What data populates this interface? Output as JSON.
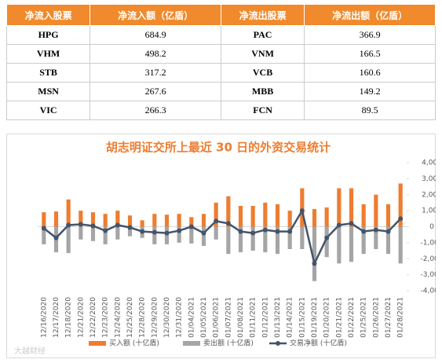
{
  "table": {
    "header": [
      "净流入股票",
      "净流入额（亿盾）",
      "净流出股票",
      "净流出额（亿盾）"
    ],
    "rows": [
      [
        "HPG",
        "684.9",
        "PAC",
        "366.9"
      ],
      [
        "VHM",
        "498.2",
        "VNM",
        "166.5"
      ],
      [
        "STB",
        "317.2",
        "VCB",
        "160.6"
      ],
      [
        "MSN",
        "267.6",
        "MBB",
        "149.2"
      ],
      [
        "VIC",
        "266.3",
        "FCN",
        "89.5"
      ]
    ]
  },
  "chart_data": {
    "type": "bar",
    "title": "胡志明证交所上最近 30 日的外资交易统计",
    "categories": [
      "12/16/2020",
      "12/17/2020",
      "12/18/2020",
      "12/21/2020",
      "12/22/2020",
      "12/23/2020",
      "12/24/2020",
      "12/25/2020",
      "12/28/2020",
      "12/29/2020",
      "12/30/2020",
      "12/31/2020",
      "01/04/2021",
      "01/05/2021",
      "01/06/2021",
      "01/07/2021",
      "01/08/2021",
      "01/11/2021",
      "01/12/2021",
      "01/13/2021",
      "01/14/2021",
      "01/15/2021",
      "01/19/2021",
      "01/20/2021",
      "01/21/2021",
      "01/22/2021",
      "01/25/2021",
      "01/26/2021",
      "01/27/2021",
      "01/28/2021"
    ],
    "series": [
      {
        "name": "买入额 (十亿盾)",
        "type": "bar",
        "color": "#ed7d31",
        "values": [
          900,
          950,
          1700,
          1000,
          900,
          800,
          1000,
          700,
          400,
          800,
          750,
          800,
          600,
          800,
          1500,
          1900,
          1300,
          1300,
          1500,
          1400,
          1000,
          2400,
          1100,
          1200,
          2400,
          2400,
          1400,
          2000,
          1400,
          2700
        ]
      },
      {
        "name": "卖出额 (十亿盾)",
        "type": "bar",
        "color": "#a5a5a5",
        "values": [
          -1100,
          -1600,
          -1650,
          -800,
          -900,
          -1100,
          -800,
          -600,
          -700,
          -1100,
          -1100,
          -1000,
          -1050,
          -1200,
          -800,
          -1700,
          -1600,
          -1500,
          -1600,
          -1700,
          -1400,
          -1400,
          -3400,
          -1900,
          -2300,
          -2200,
          -1700,
          -1400,
          -1700,
          -2300
        ]
      },
      {
        "name": "交易净额 (十亿盾)",
        "type": "line",
        "color": "#44546a",
        "values": [
          -100,
          -700,
          100,
          150,
          50,
          -250,
          100,
          -50,
          -300,
          -350,
          -400,
          -250,
          0,
          -400,
          350,
          200,
          -300,
          -400,
          -200,
          -300,
          -300,
          1000,
          -2300,
          -700,
          100,
          200,
          -300,
          -200,
          -300,
          500
        ]
      }
    ],
    "ylim": [
      -4000,
      4000
    ],
    "yticks": [
      {
        "value": 4000,
        "label": "4,000"
      },
      {
        "value": 3000,
        "label": "3,000"
      },
      {
        "value": 2000,
        "label": "2,000"
      },
      {
        "value": 1000,
        "label": "1,000"
      },
      0,
      {
        "value": -1000,
        "label": "-1,000"
      },
      {
        "value": -2000,
        "label": "-2,000"
      },
      {
        "value": -3000,
        "label": "-3,000"
      },
      {
        "value": -4000,
        "label": "-4,000"
      }
    ],
    "watermark": "大越财经"
  }
}
